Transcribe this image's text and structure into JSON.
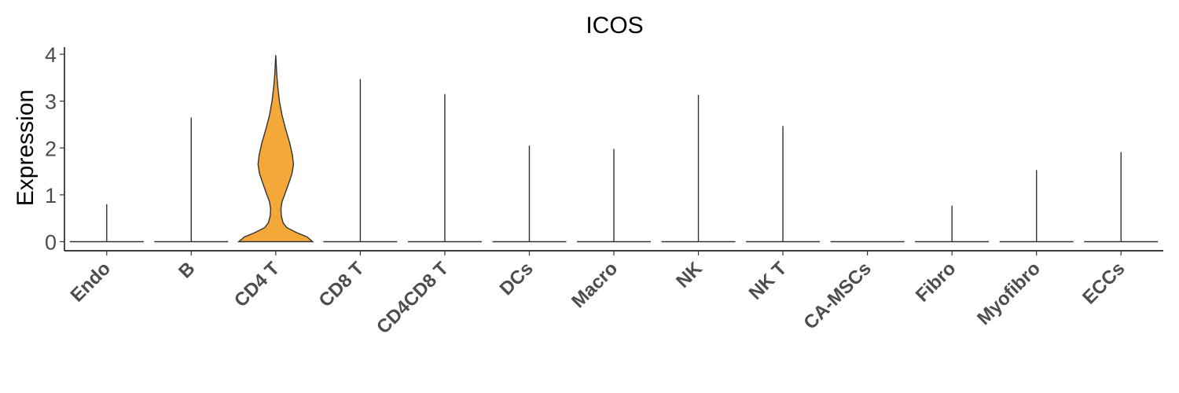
{
  "chart_data": {
    "type": "violin",
    "title": "ICOS",
    "xlabel": "",
    "ylabel": "Expression",
    "ylim": [
      -0.2,
      4.15
    ],
    "yticks": [
      0,
      1,
      2,
      3,
      4
    ],
    "ytick_labels": [
      "0",
      "1",
      "2",
      "3",
      "4"
    ],
    "grid": false,
    "legend": "none",
    "fill_color": "#F5A83A",
    "categories": [
      {
        "name": "Endo",
        "max": 0.8,
        "profile": null
      },
      {
        "name": "B",
        "max": 2.65,
        "profile": null
      },
      {
        "name": "CD4 T",
        "max": 3.98,
        "profile": [
          [
            0,
            1.0
          ],
          [
            0.1,
            0.85
          ],
          [
            0.2,
            0.55
          ],
          [
            0.3,
            0.3
          ],
          [
            0.4,
            0.2
          ],
          [
            0.55,
            0.15
          ],
          [
            0.7,
            0.14
          ],
          [
            0.85,
            0.17
          ],
          [
            1.0,
            0.24
          ],
          [
            1.2,
            0.33
          ],
          [
            1.45,
            0.44
          ],
          [
            1.65,
            0.48
          ],
          [
            1.85,
            0.45
          ],
          [
            2.1,
            0.38
          ],
          [
            2.4,
            0.27
          ],
          [
            2.7,
            0.17
          ],
          [
            3.0,
            0.1
          ],
          [
            3.3,
            0.055
          ],
          [
            3.6,
            0.025
          ],
          [
            3.85,
            0.01
          ],
          [
            3.98,
            0.0
          ]
        ]
      },
      {
        "name": "CD8 T",
        "max": 3.47,
        "profile": null
      },
      {
        "name": "CD4CD8 T",
        "max": 3.15,
        "profile": null
      },
      {
        "name": "DCs",
        "max": 2.05,
        "profile": null
      },
      {
        "name": "Macro",
        "max": 1.98,
        "profile": null
      },
      {
        "name": "NK",
        "max": 3.13,
        "profile": null
      },
      {
        "name": "NK T",
        "max": 2.47,
        "profile": null
      },
      {
        "name": "CA-MSCs",
        "max": 0,
        "profile": null
      },
      {
        "name": "Fibro",
        "max": 0.77,
        "profile": null
      },
      {
        "name": "Myofibro",
        "max": 1.53,
        "profile": null
      },
      {
        "name": "ECCs",
        "max": 1.91,
        "profile": null
      }
    ]
  }
}
